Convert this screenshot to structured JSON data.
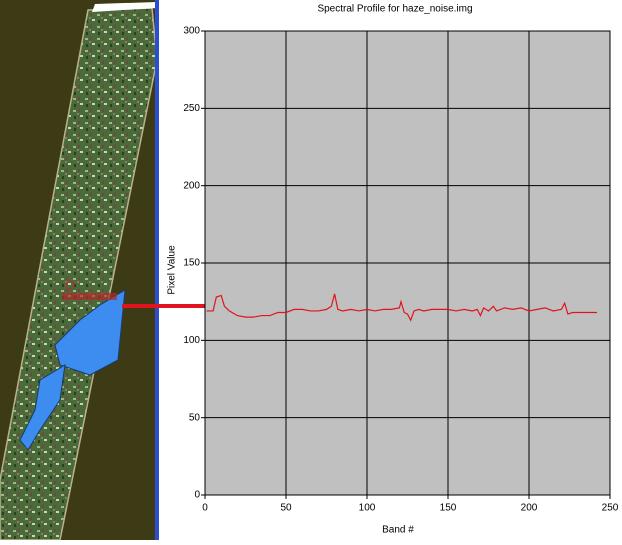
{
  "chart_data": {
    "type": "line",
    "title": "Spectral Profile for haze_noise.img",
    "x_label": "Band #",
    "y_label": "Pixel Value",
    "x": [
      1,
      5,
      7,
      10,
      12,
      15,
      20,
      25,
      30,
      35,
      40,
      45,
      50,
      55,
      60,
      65,
      70,
      75,
      78,
      80,
      82,
      85,
      90,
      95,
      100,
      105,
      110,
      115,
      120,
      121,
      123,
      125,
      127,
      129,
      132,
      135,
      140,
      145,
      150,
      155,
      160,
      165,
      168,
      170,
      172,
      175,
      178,
      180,
      185,
      190,
      195,
      200,
      205,
      210,
      215,
      220,
      222,
      224,
      227,
      235,
      242
    ],
    "series": [
      {
        "color": "#e0141e",
        "values": [
          119,
          119,
          128,
          129,
          122,
          119,
          116,
          115,
          115,
          116,
          116,
          118,
          118,
          120,
          120,
          119,
          119,
          120,
          122,
          130,
          120,
          119,
          120,
          119,
          120,
          119,
          120,
          120,
          121,
          125,
          118,
          117,
          113,
          119,
          120,
          119,
          120,
          120,
          120,
          119,
          120,
          119,
          120,
          116,
          121,
          119,
          122,
          119,
          121,
          120,
          121,
          119,
          120,
          121,
          119,
          120,
          124,
          117,
          118,
          118,
          118
        ]
      }
    ],
    "xlim": [
      0,
      250
    ],
    "ylim": [
      0,
      300
    ],
    "xticks": [
      0,
      50,
      100,
      150,
      200,
      250
    ],
    "yticks": [
      0,
      50,
      100,
      150,
      200,
      250,
      300
    ],
    "grid": true
  }
}
